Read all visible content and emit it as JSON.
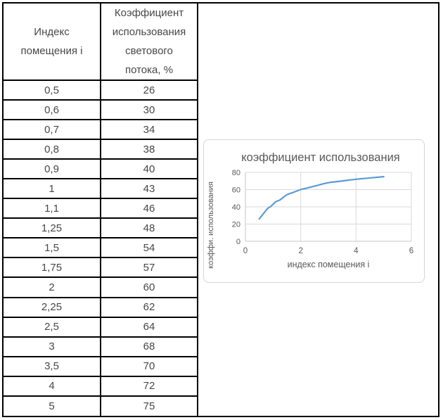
{
  "table": {
    "columns": [
      {
        "label": "Индекс помещения i",
        "lines": [
          "Индекс",
          "помещения i"
        ]
      },
      {
        "label": "Коэффициент использования светового потока, %",
        "lines": [
          "Коэффициент",
          "использования",
          "светового",
          "потока, %"
        ]
      }
    ],
    "rows": [
      [
        "0,5",
        "26"
      ],
      [
        "0,6",
        "30"
      ],
      [
        "0,7",
        "34"
      ],
      [
        "0,8",
        "38"
      ],
      [
        "0,9",
        "40"
      ],
      [
        "1",
        "43"
      ],
      [
        "1,1",
        "46"
      ],
      [
        "1,25",
        "48"
      ],
      [
        "1,5",
        "54"
      ],
      [
        "1,75",
        "57"
      ],
      [
        "2",
        "60"
      ],
      [
        "2,25",
        "62"
      ],
      [
        "2,5",
        "64"
      ],
      [
        "3",
        "68"
      ],
      [
        "3,5",
        "70"
      ],
      [
        "4",
        "72"
      ],
      [
        "5",
        "75"
      ]
    ],
    "border_color": "#000000",
    "text_color": "#474747"
  },
  "chart_data": {
    "type": "line",
    "title": "коэффициент использования",
    "xlabel": "индекс помещения i",
    "ylabel": "коэффи. использования",
    "x": [
      0.5,
      0.6,
      0.7,
      0.8,
      0.9,
      1,
      1.1,
      1.25,
      1.5,
      1.75,
      2,
      2.25,
      2.5,
      3,
      3.5,
      4,
      5
    ],
    "y": [
      26,
      30,
      34,
      38,
      40,
      43,
      46,
      48,
      54,
      57,
      60,
      62,
      64,
      68,
      70,
      72,
      75
    ],
    "xlim": [
      0,
      6
    ],
    "ylim": [
      0,
      80
    ],
    "xticks": [
      0,
      2,
      4,
      6
    ],
    "yticks": [
      0,
      20,
      40,
      60,
      80
    ],
    "grid": true,
    "legend": "none",
    "smooth": true,
    "line_color": "#5b9bd5",
    "text_color": "#595959",
    "grid_color": "#d9d9d9",
    "axis_color": "#c6c6c6",
    "box_border_color": "#d5d5d5"
  }
}
